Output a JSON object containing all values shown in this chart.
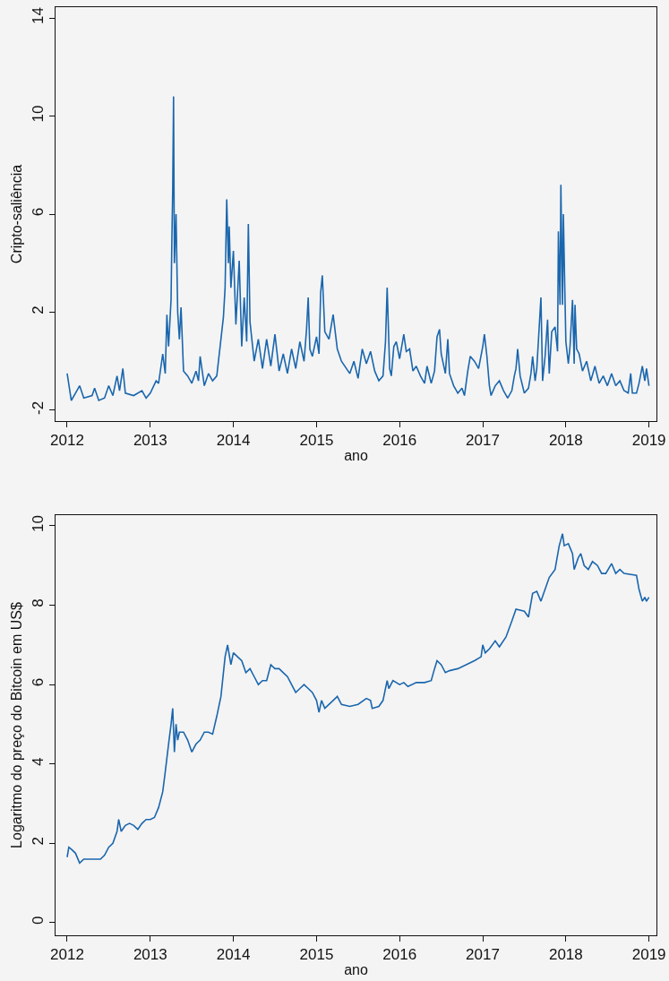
{
  "chart_data": [
    {
      "type": "line",
      "xlabel": "ano",
      "ylabel": "Cripto-saliência",
      "xlim": [
        2011.86,
        2019.09
      ],
      "xticks": [
        2012,
        2013,
        2014,
        2015,
        2016,
        2017,
        2018,
        2019
      ],
      "ylim": [
        -2.44,
        14.44
      ],
      "yticks": [
        -2,
        2,
        6,
        10,
        14
      ],
      "grid": false,
      "marker": "none",
      "line_style": "solid",
      "x": [
        2012.0,
        2012.05,
        2012.1,
        2012.15,
        2012.2,
        2012.3,
        2012.33,
        2012.38,
        2012.45,
        2012.5,
        2012.55,
        2012.6,
        2012.63,
        2012.67,
        2012.7,
        2012.8,
        2012.9,
        2012.95,
        2013.0,
        2013.07,
        2013.1,
        2013.15,
        2013.18,
        2013.2,
        2013.22,
        2013.25,
        2013.26,
        2013.27,
        2013.28,
        2013.29,
        2013.31,
        2013.33,
        2013.35,
        2013.37,
        2013.4,
        2013.45,
        2013.5,
        2013.55,
        2013.58,
        2013.6,
        2013.65,
        2013.7,
        2013.75,
        2013.8,
        2013.85,
        2013.88,
        2013.9,
        2013.92,
        2013.94,
        2013.95,
        2013.97,
        2014.0,
        2014.03,
        2014.07,
        2014.1,
        2014.13,
        2014.16,
        2014.18,
        2014.2,
        2014.25,
        2014.3,
        2014.35,
        2014.4,
        2014.45,
        2014.5,
        2014.55,
        2014.6,
        2014.65,
        2014.7,
        2014.75,
        2014.8,
        2014.85,
        2014.88,
        2014.9,
        2014.92,
        2014.95,
        2015.0,
        2015.03,
        2015.05,
        2015.07,
        2015.1,
        2015.15,
        2015.2,
        2015.25,
        2015.3,
        2015.4,
        2015.45,
        2015.5,
        2015.55,
        2015.6,
        2015.65,
        2015.7,
        2015.75,
        2015.8,
        2015.83,
        2015.85,
        2015.88,
        2015.9,
        2015.93,
        2015.96,
        2016.0,
        2016.05,
        2016.08,
        2016.12,
        2016.16,
        2016.2,
        2016.25,
        2016.3,
        2016.33,
        2016.38,
        2016.42,
        2016.45,
        2016.48,
        2016.5,
        2016.55,
        2016.58,
        2016.6,
        2016.65,
        2016.7,
        2016.75,
        2016.78,
        2016.82,
        2016.85,
        2016.9,
        2016.95,
        2017.0,
        2017.02,
        2017.05,
        2017.08,
        2017.1,
        2017.15,
        2017.2,
        2017.25,
        2017.3,
        2017.35,
        2017.38,
        2017.4,
        2017.42,
        2017.45,
        2017.5,
        2017.55,
        2017.58,
        2017.6,
        2017.63,
        2017.65,
        2017.7,
        2017.72,
        2017.75,
        2017.78,
        2017.8,
        2017.83,
        2017.87,
        2017.9,
        2017.91,
        2017.93,
        2017.94,
        2017.96,
        2017.97,
        2017.99,
        2018.0,
        2018.03,
        2018.05,
        2018.08,
        2018.1,
        2018.11,
        2018.13,
        2018.16,
        2018.2,
        2018.25,
        2018.3,
        2018.35,
        2018.4,
        2018.45,
        2018.5,
        2018.55,
        2018.6,
        2018.65,
        2018.7,
        2018.75,
        2018.78,
        2018.8,
        2018.85,
        2018.88,
        2018.92,
        2018.95,
        2018.97,
        2019.0
      ],
      "series": [
        {
          "color": "#1a66ad",
          "values": [
            -0.5,
            -1.6,
            -1.3,
            -1.0,
            -1.5,
            -1.4,
            -1.1,
            -1.6,
            -1.5,
            -1.0,
            -1.4,
            -0.6,
            -1.2,
            -0.3,
            -1.3,
            -1.4,
            -1.2,
            -1.5,
            -1.3,
            -0.8,
            -0.9,
            0.3,
            -0.5,
            1.9,
            0.6,
            2.5,
            5.0,
            7.0,
            10.8,
            4.0,
            6.0,
            2.0,
            0.9,
            2.2,
            -0.4,
            -0.6,
            -0.9,
            -0.4,
            -0.8,
            0.2,
            -1.0,
            -0.5,
            -0.8,
            -0.6,
            0.9,
            1.8,
            3.0,
            6.6,
            4.0,
            5.5,
            3.0,
            4.5,
            1.5,
            4.1,
            0.6,
            2.6,
            0.8,
            5.6,
            1.6,
            0.0,
            0.9,
            -0.3,
            0.9,
            -0.2,
            1.1,
            -0.4,
            0.3,
            -0.5,
            0.5,
            -0.3,
            0.8,
            0.0,
            1.3,
            2.6,
            0.5,
            0.2,
            1.0,
            0.3,
            2.8,
            3.5,
            1.2,
            0.9,
            1.9,
            0.5,
            0.0,
            -0.5,
            0.0,
            -0.7,
            0.5,
            -0.1,
            0.4,
            -0.4,
            -0.8,
            -0.6,
            0.8,
            3.0,
            -0.3,
            -0.6,
            0.6,
            0.8,
            0.1,
            1.1,
            0.4,
            0.5,
            -0.4,
            -0.2,
            -0.6,
            -0.9,
            -0.2,
            -0.9,
            -0.4,
            1.0,
            1.3,
            0.3,
            -0.5,
            0.9,
            -0.5,
            -1.0,
            -1.3,
            -1.1,
            -1.4,
            -0.4,
            0.2,
            0.0,
            -0.3,
            0.6,
            1.1,
            0.2,
            -1.0,
            -1.4,
            -1.0,
            -0.8,
            -1.2,
            -1.5,
            -1.2,
            -0.6,
            -0.3,
            0.5,
            -0.6,
            -1.3,
            -1.1,
            -0.5,
            0.2,
            -0.8,
            -0.3,
            2.6,
            -0.8,
            0.2,
            1.7,
            -0.5,
            1.2,
            1.4,
            0.4,
            5.3,
            2.3,
            7.2,
            2.3,
            6.0,
            2.5,
            0.8,
            -0.1,
            0.6,
            2.5,
            -0.1,
            2.3,
            0.5,
            0.3,
            -0.4,
            0.0,
            -0.8,
            -0.2,
            -0.9,
            -0.6,
            -1.0,
            -0.5,
            -1.0,
            -0.8,
            -1.2,
            -1.3,
            -0.5,
            -1.3,
            -1.3,
            -0.9,
            -0.2,
            -0.8,
            -0.3,
            -1.0
          ]
        }
      ]
    },
    {
      "type": "line",
      "xlabel": "ano",
      "ylabel": "Logaritmo do preço do Bitcoin em US$",
      "xlim": [
        2011.86,
        2019.09
      ],
      "xticks": [
        2012,
        2013,
        2014,
        2015,
        2016,
        2017,
        2018,
        2019
      ],
      "ylim": [
        -0.32,
        10.27
      ],
      "yticks": [
        0,
        2,
        4,
        6,
        8,
        10
      ],
      "grid": false,
      "marker": "none",
      "line_style": "solid",
      "x": [
        2012.0,
        2012.02,
        2012.05,
        2012.1,
        2012.15,
        2012.2,
        2012.3,
        2012.4,
        2012.45,
        2012.5,
        2012.55,
        2012.6,
        2012.62,
        2012.65,
        2012.7,
        2012.75,
        2012.8,
        2012.85,
        2012.9,
        2012.95,
        2013.0,
        2013.05,
        2013.1,
        2013.15,
        2013.18,
        2013.22,
        2013.25,
        2013.27,
        2013.29,
        2013.31,
        2013.33,
        2013.35,
        2013.4,
        2013.45,
        2013.5,
        2013.55,
        2013.6,
        2013.65,
        2013.7,
        2013.75,
        2013.8,
        2013.85,
        2013.9,
        2013.93,
        2013.97,
        2014.0,
        2014.05,
        2014.1,
        2014.15,
        2014.2,
        2014.25,
        2014.3,
        2014.35,
        2014.4,
        2014.45,
        2014.5,
        2014.55,
        2014.6,
        2014.65,
        2014.7,
        2014.75,
        2014.8,
        2014.85,
        2014.9,
        2014.95,
        2015.0,
        2015.03,
        2015.06,
        2015.1,
        2015.2,
        2015.25,
        2015.3,
        2015.4,
        2015.5,
        2015.6,
        2015.65,
        2015.67,
        2015.75,
        2015.8,
        2015.83,
        2015.85,
        2015.87,
        2015.92,
        2016.0,
        2016.05,
        2016.1,
        2016.2,
        2016.3,
        2016.38,
        2016.42,
        2016.45,
        2016.5,
        2016.55,
        2016.6,
        2016.7,
        2016.8,
        2016.9,
        2016.98,
        2017.0,
        2017.03,
        2017.08,
        2017.15,
        2017.2,
        2017.28,
        2017.35,
        2017.4,
        2017.5,
        2017.55,
        2017.6,
        2017.65,
        2017.7,
        2017.75,
        2017.8,
        2017.87,
        2017.92,
        2017.96,
        2017.98,
        2018.03,
        2018.08,
        2018.1,
        2018.15,
        2018.18,
        2018.22,
        2018.27,
        2018.32,
        2018.38,
        2018.43,
        2018.48,
        2018.55,
        2018.6,
        2018.65,
        2018.7,
        2018.85,
        2018.88,
        2018.92,
        2018.95,
        2018.97,
        2019.0
      ],
      "series": [
        {
          "color": "#1a66ad",
          "values": [
            1.65,
            1.9,
            1.85,
            1.75,
            1.5,
            1.6,
            1.6,
            1.6,
            1.7,
            1.9,
            2.0,
            2.3,
            2.6,
            2.3,
            2.45,
            2.5,
            2.45,
            2.35,
            2.5,
            2.6,
            2.6,
            2.65,
            2.9,
            3.3,
            3.8,
            4.5,
            5.0,
            5.4,
            4.3,
            5.0,
            4.6,
            4.8,
            4.8,
            4.6,
            4.3,
            4.5,
            4.6,
            4.8,
            4.8,
            4.75,
            5.2,
            5.7,
            6.7,
            7.0,
            6.5,
            6.8,
            6.7,
            6.6,
            6.3,
            6.4,
            6.2,
            6.0,
            6.1,
            6.1,
            6.5,
            6.4,
            6.4,
            6.3,
            6.2,
            6.0,
            5.8,
            5.9,
            6.0,
            5.9,
            5.8,
            5.6,
            5.3,
            5.6,
            5.4,
            5.6,
            5.7,
            5.5,
            5.45,
            5.5,
            5.65,
            5.6,
            5.4,
            5.45,
            5.6,
            5.9,
            6.1,
            5.9,
            6.1,
            6.0,
            6.05,
            5.95,
            6.05,
            6.05,
            6.1,
            6.4,
            6.6,
            6.5,
            6.3,
            6.35,
            6.4,
            6.5,
            6.6,
            6.7,
            7.0,
            6.8,
            6.9,
            7.1,
            6.95,
            7.2,
            7.6,
            7.9,
            7.85,
            7.7,
            8.3,
            8.35,
            8.1,
            8.4,
            8.7,
            8.9,
            9.5,
            9.8,
            9.5,
            9.55,
            9.3,
            8.9,
            9.2,
            9.3,
            9.0,
            8.9,
            9.1,
            9.0,
            8.8,
            8.8,
            9.05,
            8.8,
            8.9,
            8.8,
            8.75,
            8.4,
            8.1,
            8.2,
            8.1,
            8.2
          ]
        }
      ]
    }
  ]
}
